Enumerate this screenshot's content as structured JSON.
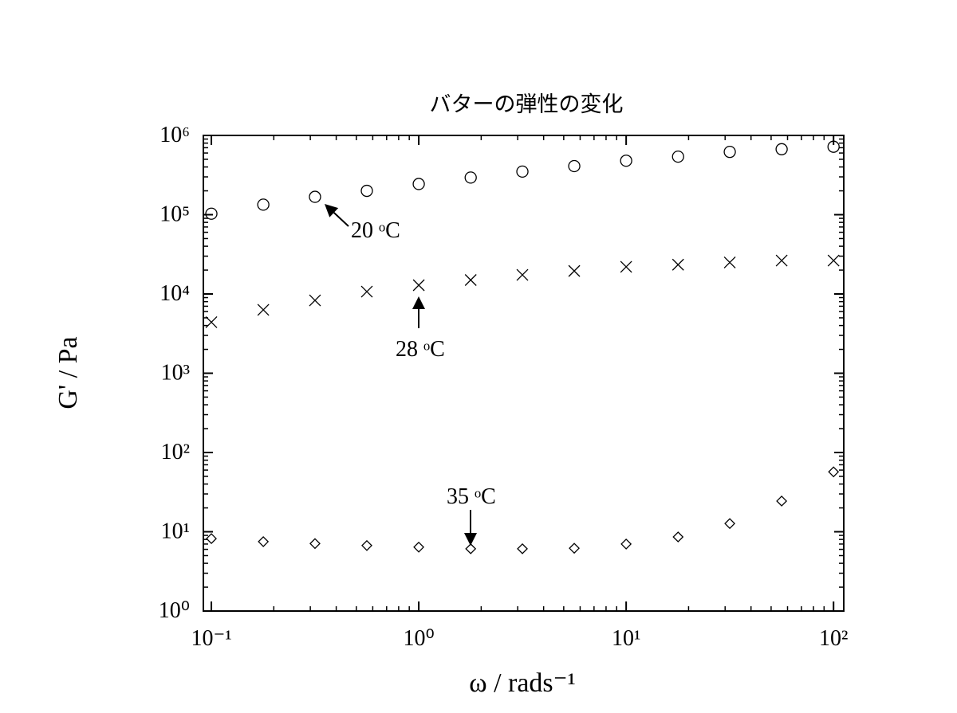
{
  "chart_data": {
    "type": "scatter",
    "title": "バターの弾性の変化",
    "x_label": "ω / rads⁻¹",
    "y_label": "G' / Pa",
    "x": [
      0.1,
      0.178,
      0.316,
      0.562,
      1,
      1.78,
      3.16,
      5.62,
      10,
      17.8,
      31.6,
      56.2,
      100
    ],
    "series": [
      {
        "name": "20 ᵒC",
        "color": "#000000",
        "marker": "circle",
        "values": [
          103000,
          134000,
          168000,
          200000,
          244000,
          294000,
          350000,
          410000,
          480000,
          540000,
          620000,
          670000,
          720000
        ]
      },
      {
        "name": "28 ᵒC",
        "color": "#000000",
        "marker": "x",
        "values": [
          4400,
          6300,
          8300,
          10700,
          12900,
          15000,
          17400,
          19500,
          22000,
          23400,
          25000,
          26400,
          26400
        ]
      },
      {
        "name": "35 ᵒC",
        "color": "#000000",
        "marker": "diamond",
        "values": [
          8.2,
          7.5,
          7.1,
          6.7,
          6.4,
          6.1,
          6.1,
          6.2,
          7.0,
          8.6,
          12.7,
          24.4,
          57
        ]
      }
    ],
    "xlog": true,
    "ylog": true,
    "xlim": [
      0.0915,
      112
    ],
    "ylim": [
      1,
      1000000
    ],
    "xticks": [
      {
        "value": 0.1,
        "label": "10⁻¹"
      },
      {
        "value": 1,
        "label": "10⁰"
      },
      {
        "value": 10,
        "label": "10¹"
      },
      {
        "value": 100,
        "label": "10²"
      }
    ],
    "yticks": [
      {
        "value": 1,
        "label": "10⁰"
      },
      {
        "value": 10,
        "label": "10¹"
      },
      {
        "value": 100,
        "label": "10²"
      },
      {
        "value": 1000,
        "label": "10³"
      },
      {
        "value": 10000,
        "label": "10⁴"
      },
      {
        "value": 100000,
        "label": "10⁵"
      },
      {
        "value": 1000000,
        "label": "10⁶"
      }
    ],
    "minor_ticks": true,
    "grid": false
  }
}
